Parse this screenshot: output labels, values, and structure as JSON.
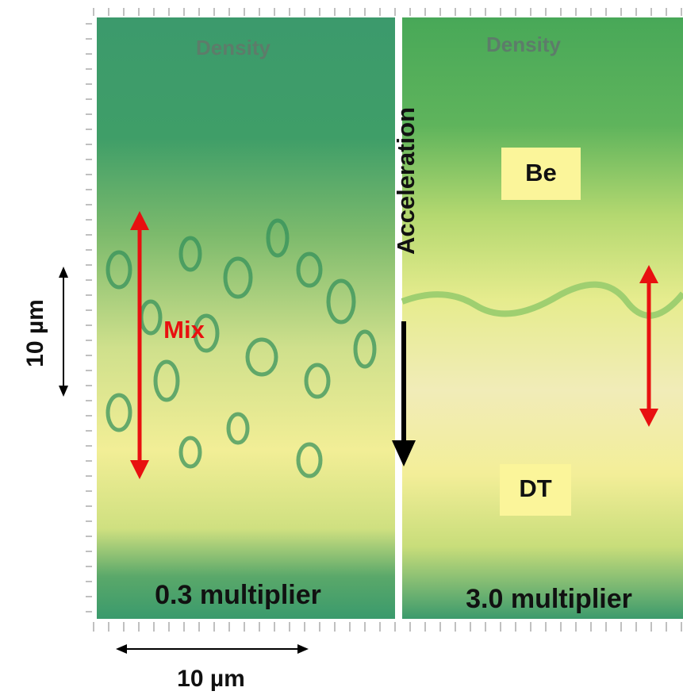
{
  "panels": [
    {
      "title": "Density",
      "caption": "0.3 multiplier",
      "label": "Mix"
    },
    {
      "title": "Density",
      "caption": "3.0 multiplier",
      "labels": [
        "Be",
        "DT"
      ]
    }
  ],
  "annotations": {
    "acceleration": "Acceleration"
  },
  "scale_bars": {
    "vertical": "10 µm",
    "horizontal": "10 µm"
  }
}
